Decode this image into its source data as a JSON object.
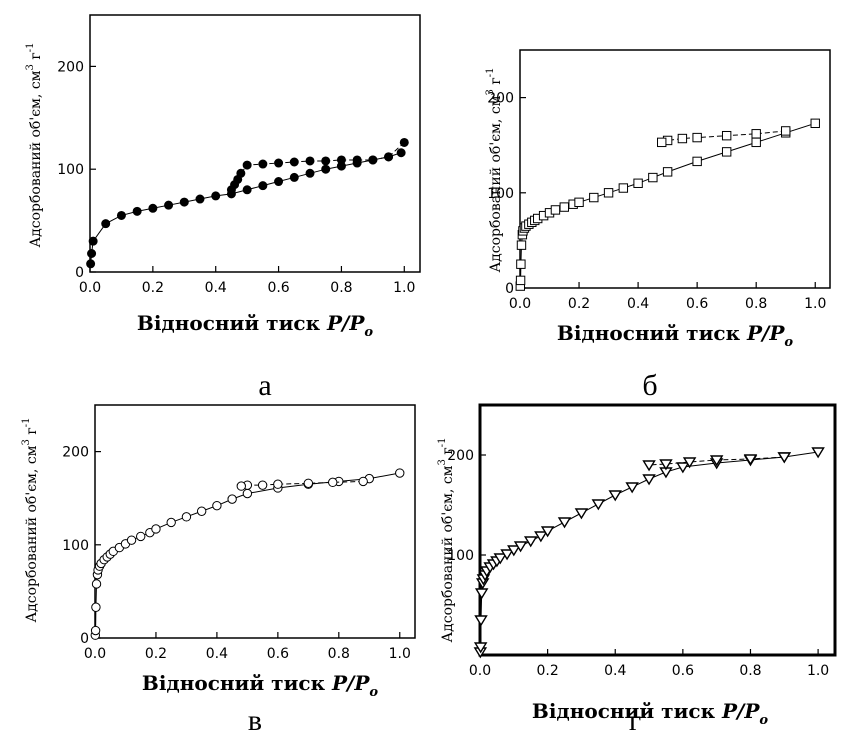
{
  "chart_data": [
    {
      "type": "scatter",
      "panel_label": "а",
      "marker": "filled-circle",
      "xlabel_text": "Відносний тиск ",
      "xlabel_italic": "P/P",
      "xlabel_sub": "o",
      "ylabel_text": "Адсорбований об'єм, см",
      "ylabel_sup": "3",
      "ylabel_unit": "г",
      "ylabel_unit_sup": "-1",
      "xlim": [
        0,
        1.05
      ],
      "ylim": [
        0,
        250
      ],
      "xticks": [
        "0.0",
        "0.2",
        "0.4",
        "0.6",
        "0.8",
        "1.0"
      ],
      "yticks": [
        "0",
        "100",
        "200"
      ],
      "series": [
        {
          "x": [
            0.002,
            0.005,
            0.01,
            0.05,
            0.1,
            0.15,
            0.2,
            0.25,
            0.3,
            0.35,
            0.4,
            0.45,
            0.5,
            0.55,
            0.6,
            0.65,
            0.7,
            0.75,
            0.8,
            0.85,
            0.9,
            0.95,
            0.99
          ],
          "y": [
            8,
            18,
            30,
            47,
            55,
            59,
            62,
            65,
            68,
            71,
            74,
            76,
            80,
            84,
            88,
            92,
            96,
            100,
            103,
            106,
            109,
            112,
            116
          ]
        },
        {
          "x": [
            1.0,
            0.95,
            0.9,
            0.85,
            0.8,
            0.75,
            0.7,
            0.65,
            0.6,
            0.55,
            0.5,
            0.48,
            0.47,
            0.46,
            0.45
          ],
          "y": [
            126,
            112,
            109,
            109,
            109,
            108,
            108,
            107,
            106,
            105,
            104,
            96,
            90,
            85,
            80
          ]
        }
      ]
    },
    {
      "type": "scatter",
      "panel_label": "б",
      "marker": "open-square",
      "xlabel_text": "Відносний тиск ",
      "xlabel_italic": "P/P",
      "xlabel_sub": "o",
      "ylabel_text": "Адсорбований об'єм, см",
      "ylabel_sup": "3",
      "ylabel_unit": "г",
      "ylabel_unit_sup": "-1",
      "xlim": [
        0,
        1.05
      ],
      "ylim": [
        0,
        250
      ],
      "xticks": [
        "0.0",
        "0.2",
        "0.4",
        "0.6",
        "0.8",
        "1.0"
      ],
      "yticks": [
        "0",
        "100",
        "200"
      ],
      "series": [
        {
          "x": [
            0.001,
            0.002,
            0.003,
            0.005,
            0.008,
            0.01,
            0.015,
            0.02,
            0.03,
            0.04,
            0.05,
            0.06,
            0.08,
            0.1,
            0.12,
            0.15,
            0.18,
            0.2,
            0.25,
            0.3,
            0.35,
            0.4,
            0.45,
            0.5,
            0.6,
            0.7,
            0.8,
            0.9,
            1.0
          ],
          "y": [
            2,
            8,
            25,
            45,
            56,
            60,
            63,
            65,
            67,
            69,
            71,
            73,
            76,
            79,
            82,
            85,
            88,
            90,
            95,
            100,
            105,
            110,
            116,
            122,
            133,
            143,
            153,
            163,
            173
          ]
        },
        {
          "x": [
            0.9,
            0.8,
            0.7,
            0.6,
            0.55,
            0.5,
            0.48
          ],
          "y": [
            165,
            162,
            160,
            158,
            157,
            155,
            153
          ]
        }
      ]
    },
    {
      "type": "scatter",
      "panel_label": "в",
      "marker": "open-circle",
      "xlabel_text": "Відносний тиск ",
      "xlabel_italic": "P/P",
      "xlabel_sub": "o",
      "ylabel_text": "Адсорбований об'єм, см",
      "ylabel_sup": "3",
      "ylabel_unit": "г",
      "ylabel_unit_sup": "-1",
      "xlim": [
        0,
        1.05
      ],
      "ylim": [
        0,
        250
      ],
      "xticks": [
        "0.0",
        "0.2",
        "0.4",
        "0.6",
        "0.8",
        "1.0"
      ],
      "yticks": [
        "0",
        "100",
        "200"
      ],
      "series": [
        {
          "x": [
            0.001,
            0.002,
            0.003,
            0.005,
            0.008,
            0.01,
            0.015,
            0.02,
            0.03,
            0.04,
            0.05,
            0.06,
            0.08,
            0.1,
            0.12,
            0.15,
            0.18,
            0.2,
            0.25,
            0.3,
            0.35,
            0.4,
            0.45,
            0.5,
            0.6,
            0.7,
            0.8,
            0.9,
            1.0
          ],
          "y": [
            3,
            8,
            33,
            58,
            68,
            73,
            77,
            80,
            84,
            87,
            90,
            93,
            97,
            101,
            105,
            109,
            113,
            117,
            124,
            130,
            136,
            142,
            149,
            155,
            161,
            165,
            168,
            171,
            177
          ]
        },
        {
          "x": [
            0.88,
            0.78,
            0.7,
            0.6,
            0.55,
            0.5,
            0.48
          ],
          "y": [
            168,
            167,
            166,
            165,
            164,
            164,
            163
          ]
        }
      ]
    },
    {
      "type": "scatter",
      "panel_label": "г",
      "marker": "open-triangle-down",
      "xlabel_text": "Відносний тиск ",
      "xlabel_italic": "P/P",
      "xlabel_sub": "o",
      "ylabel_text": "Адсорбований об'єм, см",
      "ylabel_sup": "3",
      "ylabel_unit": "г",
      "ylabel_unit_sup": "-1",
      "xlim": [
        0,
        1.05
      ],
      "ylim": [
        0,
        250
      ],
      "xticks": [
        "0.0",
        "0.2",
        "0.4",
        "0.6",
        "0.8",
        "1.0"
      ],
      "yticks": [
        "100",
        "200"
      ],
      "series": [
        {
          "x": [
            0.001,
            0.002,
            0.003,
            0.005,
            0.008,
            0.01,
            0.015,
            0.02,
            0.03,
            0.04,
            0.05,
            0.06,
            0.08,
            0.1,
            0.12,
            0.15,
            0.18,
            0.2,
            0.25,
            0.3,
            0.35,
            0.4,
            0.45,
            0.5,
            0.55,
            0.6,
            0.7,
            0.8,
            0.9,
            1.0
          ],
          "y": [
            3,
            8,
            35,
            62,
            72,
            76,
            80,
            84,
            88,
            91,
            94,
            97,
            101,
            105,
            109,
            114,
            119,
            124,
            133,
            142,
            151,
            160,
            168,
            176,
            183,
            188,
            192,
            195,
            198,
            203
          ]
        },
        {
          "x": [
            0.9,
            0.8,
            0.7,
            0.62,
            0.55,
            0.5
          ],
          "y": [
            198,
            196,
            195,
            193,
            191,
            190
          ]
        }
      ]
    }
  ]
}
